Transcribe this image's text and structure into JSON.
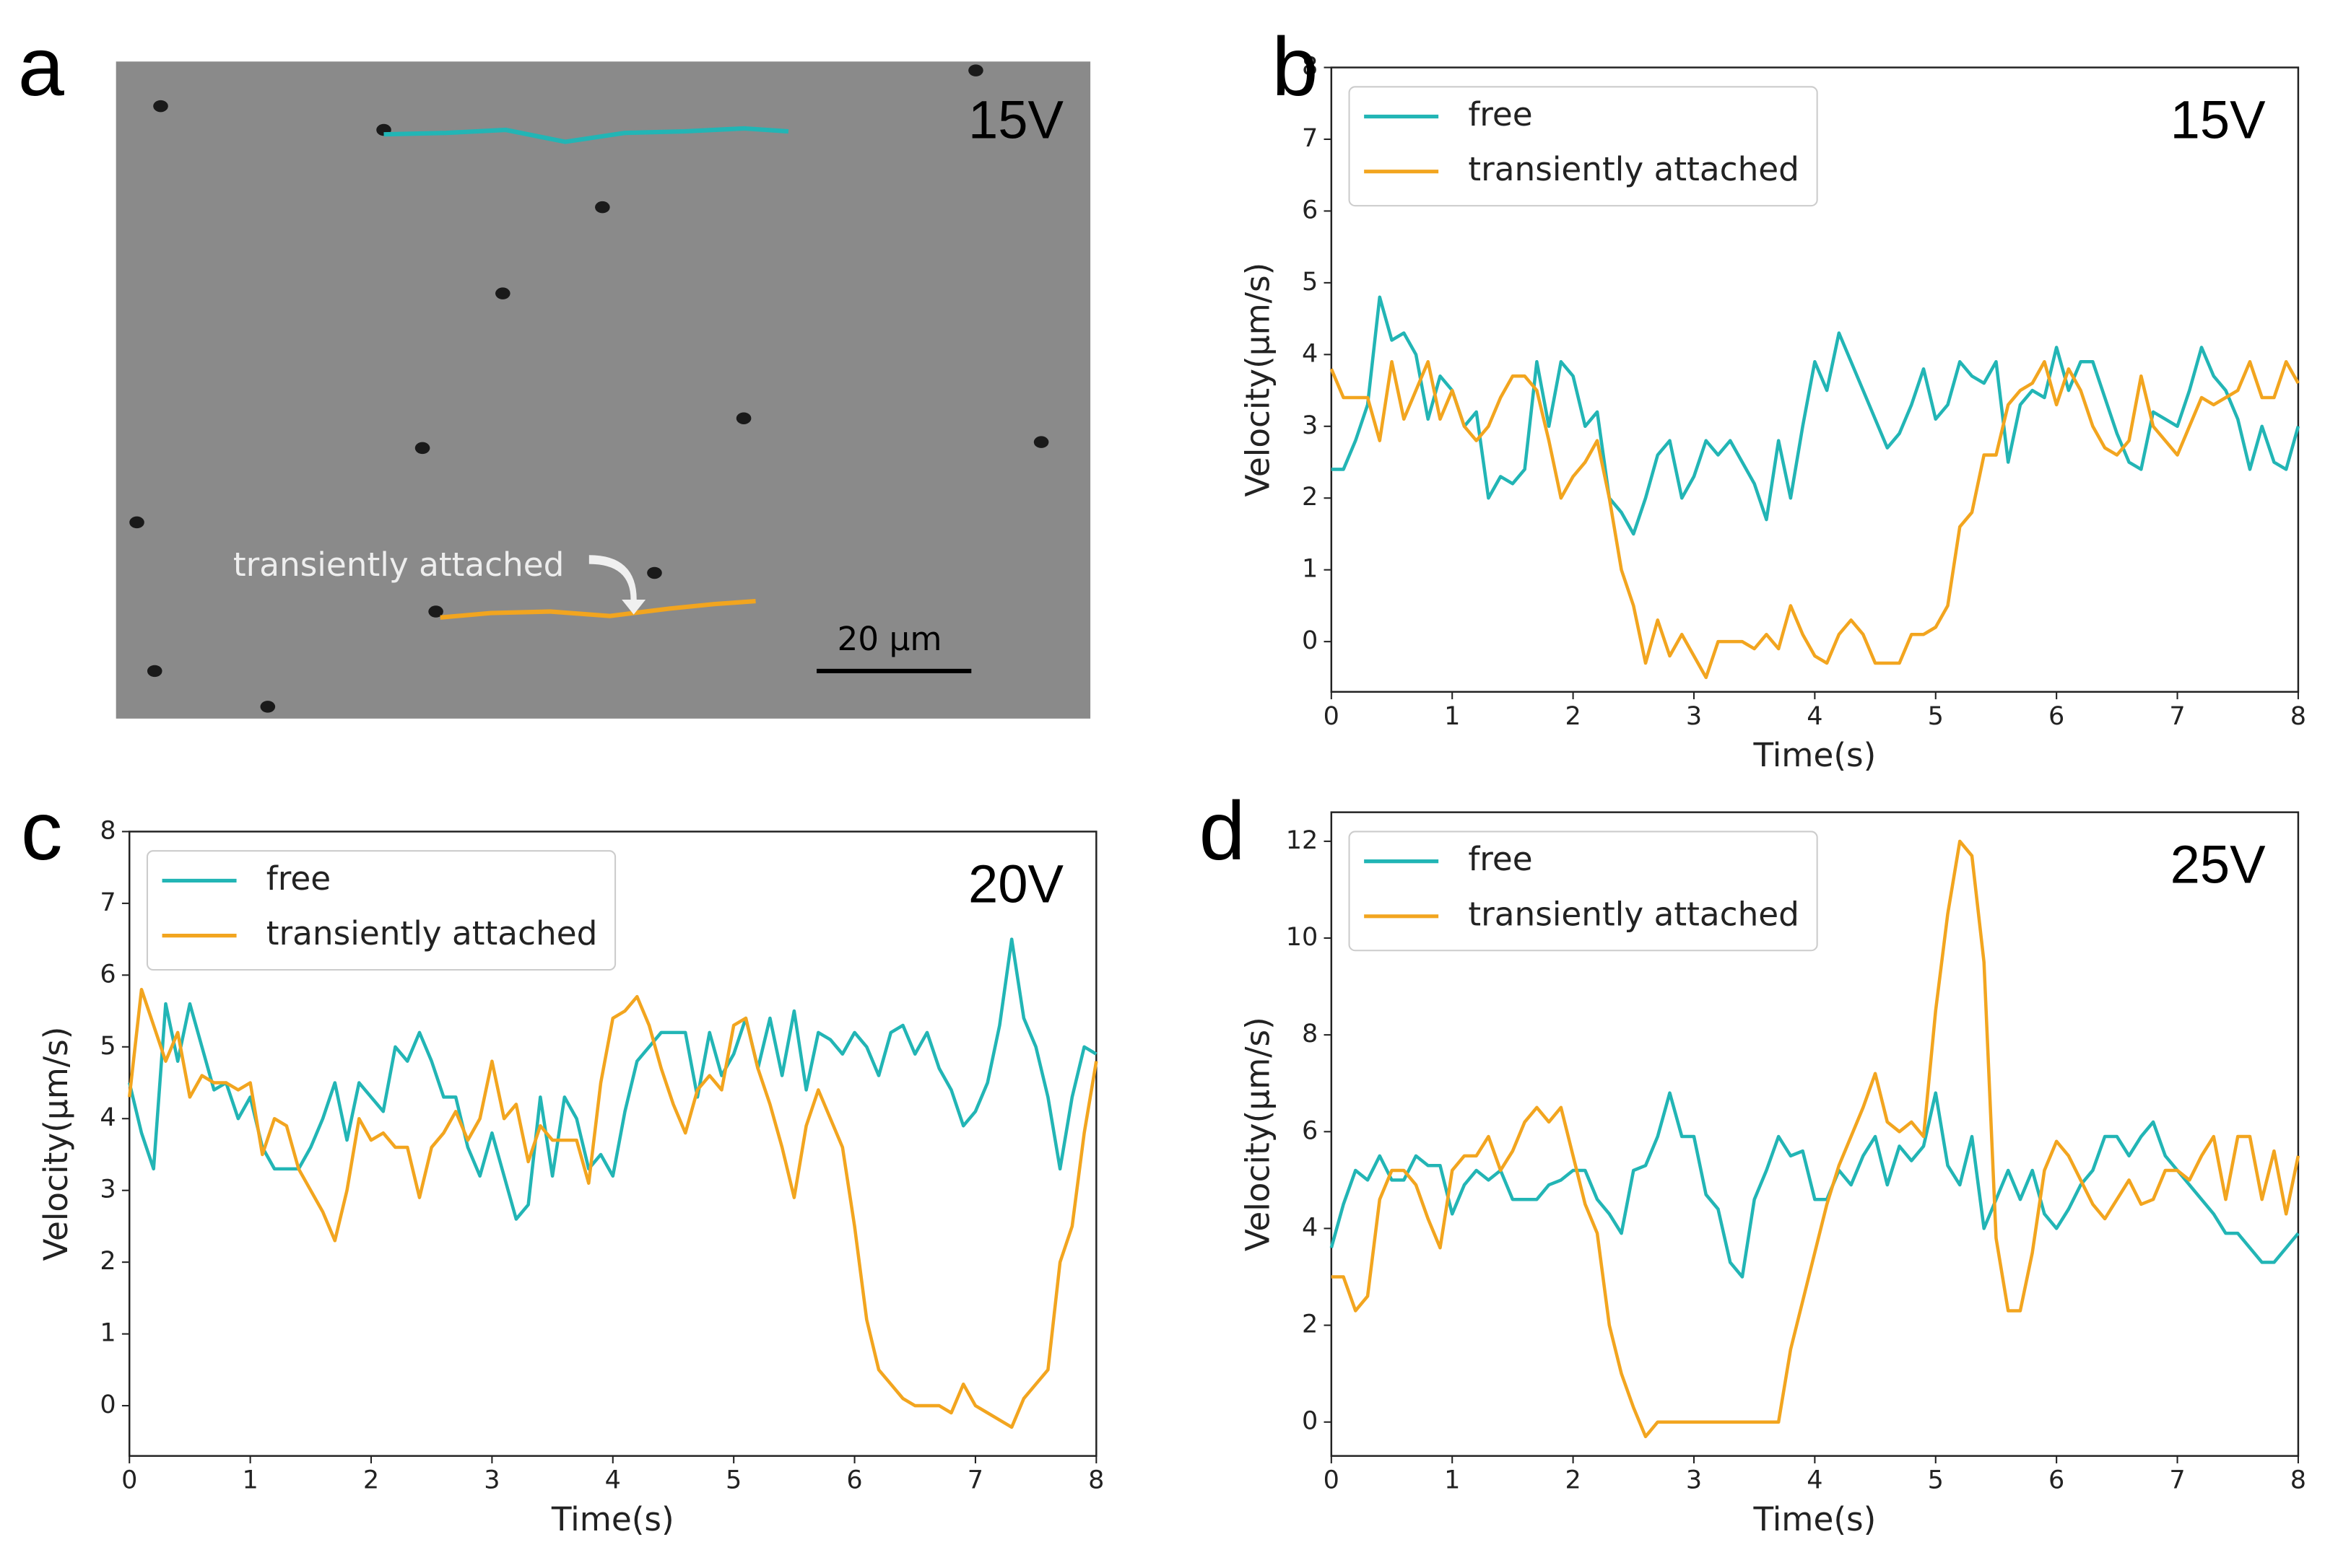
{
  "image_panel": {
    "panel_label": "a",
    "annotation": "15V",
    "note": "transiently attached",
    "scale_bar": "20 μm"
  },
  "chart_data": [
    {
      "type": "line",
      "panel_label": "b",
      "annotation": "15V",
      "xlabel": "Time(s)",
      "ylabel": "Velocity(μm/s)",
      "legend": "upper left",
      "xlim": [
        0,
        8
      ],
      "xticks": [
        0,
        1,
        2,
        3,
        4,
        5,
        6,
        7,
        8
      ],
      "ylim": [
        -0.7,
        8
      ],
      "yticks": [
        0,
        1,
        2,
        3,
        4,
        5,
        6,
        7,
        8
      ],
      "x": [
        0,
        0.1,
        0.2,
        0.3,
        0.4,
        0.5,
        0.6,
        0.7,
        0.8,
        0.9,
        1,
        1.1,
        1.2,
        1.3,
        1.4,
        1.5,
        1.6,
        1.7,
        1.8,
        1.9,
        2,
        2.1,
        2.2,
        2.3,
        2.4,
        2.5,
        2.6,
        2.7,
        2.8,
        2.9,
        3,
        3.1,
        3.2,
        3.3,
        3.4,
        3.5,
        3.6,
        3.7,
        3.8,
        3.9,
        4,
        4.1,
        4.2,
        4.3,
        4.4,
        4.5,
        4.6,
        4.7,
        4.8,
        4.9,
        5,
        5.1,
        5.2,
        5.3,
        5.4,
        5.5,
        5.6,
        5.7,
        5.8,
        5.9,
        6,
        6.1,
        6.2,
        6.3,
        6.4,
        6.5,
        6.6,
        6.7,
        6.8,
        6.9,
        7,
        7.1,
        7.2,
        7.3,
        7.4,
        7.5,
        7.6,
        7.7,
        7.8,
        7.9,
        8
      ],
      "series": [
        {
          "name": "free",
          "color": "#22b5b5",
          "values": [
            2.4,
            2.4,
            2.8,
            3.3,
            4.8,
            4.2,
            4.3,
            4.0,
            3.1,
            3.7,
            3.5,
            3.0,
            3.2,
            2.0,
            2.3,
            2.2,
            2.4,
            3.9,
            3.0,
            3.9,
            3.7,
            3.0,
            3.2,
            2.0,
            1.8,
            1.5,
            2.0,
            2.6,
            2.8,
            2.0,
            2.3,
            2.8,
            2.6,
            2.8,
            2.5,
            2.2,
            1.7,
            2.8,
            2.0,
            3.0,
            3.9,
            3.5,
            4.3,
            3.9,
            3.5,
            3.1,
            2.7,
            2.9,
            3.3,
            3.8,
            3.1,
            3.3,
            3.9,
            3.7,
            3.6,
            3.9,
            2.5,
            3.3,
            3.5,
            3.4,
            4.1,
            3.5,
            3.9,
            3.9,
            3.4,
            2.9,
            2.5,
            2.4,
            3.2,
            3.1,
            3.0,
            3.5,
            4.1,
            3.7,
            3.5,
            3.1,
            2.4,
            3.0,
            2.5,
            2.4,
            3.0
          ]
        },
        {
          "name": "transiently attached",
          "color": "#f2a51f",
          "values": [
            3.8,
            3.4,
            3.4,
            3.4,
            2.8,
            3.9,
            3.1,
            3.5,
            3.9,
            3.1,
            3.5,
            3.0,
            2.8,
            3.0,
            3.4,
            3.7,
            3.7,
            3.5,
            2.8,
            2.0,
            2.3,
            2.5,
            2.8,
            2.0,
            1.0,
            0.5,
            -0.3,
            0.3,
            -0.2,
            0.1,
            -0.2,
            -0.5,
            0.0,
            0.0,
            0.0,
            -0.1,
            0.1,
            -0.1,
            0.5,
            0.1,
            -0.2,
            -0.3,
            0.1,
            0.3,
            0.1,
            -0.3,
            -0.3,
            -0.3,
            0.1,
            0.1,
            0.2,
            0.5,
            1.6,
            1.8,
            2.6,
            2.6,
            3.3,
            3.5,
            3.6,
            3.9,
            3.3,
            3.8,
            3.5,
            3.0,
            2.7,
            2.6,
            2.8,
            3.7,
            3.0,
            2.8,
            2.6,
            3.0,
            3.4,
            3.3,
            3.4,
            3.5,
            3.9,
            3.4,
            3.4,
            3.9,
            3.6
          ]
        }
      ]
    },
    {
      "type": "line",
      "panel_label": "c",
      "annotation": "20V",
      "xlabel": "Time(s)",
      "ylabel": "Velocity(μm/s)",
      "legend": "upper left",
      "xlim": [
        0,
        8
      ],
      "xticks": [
        0,
        1,
        2,
        3,
        4,
        5,
        6,
        7,
        8
      ],
      "ylim": [
        -0.7,
        8
      ],
      "yticks": [
        0,
        1,
        2,
        3,
        4,
        5,
        6,
        7,
        8
      ],
      "x": [
        0,
        0.1,
        0.2,
        0.3,
        0.4,
        0.5,
        0.6,
        0.7,
        0.8,
        0.9,
        1,
        1.1,
        1.2,
        1.3,
        1.4,
        1.5,
        1.6,
        1.7,
        1.8,
        1.9,
        2,
        2.1,
        2.2,
        2.3,
        2.4,
        2.5,
        2.6,
        2.7,
        2.8,
        2.9,
        3,
        3.1,
        3.2,
        3.3,
        3.4,
        3.5,
        3.6,
        3.7,
        3.8,
        3.9,
        4,
        4.1,
        4.2,
        4.3,
        4.4,
        4.5,
        4.6,
        4.7,
        4.8,
        4.9,
        5,
        5.1,
        5.2,
        5.3,
        5.4,
        5.5,
        5.6,
        5.7,
        5.8,
        5.9,
        6,
        6.1,
        6.2,
        6.3,
        6.4,
        6.5,
        6.6,
        6.7,
        6.8,
        6.9,
        7,
        7.1,
        7.2,
        7.3,
        7.4,
        7.5,
        7.6,
        7.7,
        7.8,
        7.9,
        8
      ],
      "series": [
        {
          "name": "free",
          "color": "#22b5b5",
          "values": [
            4.5,
            3.8,
            3.3,
            5.6,
            4.8,
            5.6,
            5.0,
            4.4,
            4.5,
            4.0,
            4.3,
            3.6,
            3.3,
            3.3,
            3.3,
            3.6,
            4.0,
            4.5,
            3.7,
            4.5,
            4.3,
            4.1,
            5.0,
            4.8,
            5.2,
            4.8,
            4.3,
            4.3,
            3.6,
            3.2,
            3.8,
            3.2,
            2.6,
            2.8,
            4.3,
            3.2,
            4.3,
            4.0,
            3.3,
            3.5,
            3.2,
            4.1,
            4.8,
            5.0,
            5.2,
            5.2,
            5.2,
            4.3,
            5.2,
            4.6,
            4.9,
            5.4,
            4.7,
            5.4,
            4.6,
            5.5,
            4.4,
            5.2,
            5.1,
            4.9,
            5.2,
            5.0,
            4.6,
            5.2,
            5.3,
            4.9,
            5.2,
            4.7,
            4.4,
            3.9,
            4.1,
            4.5,
            5.3,
            6.5,
            5.4,
            5.0,
            4.3,
            3.3,
            4.3,
            5.0,
            4.9
          ]
        },
        {
          "name": "transiently attached",
          "color": "#f2a51f",
          "values": [
            4.3,
            5.8,
            5.3,
            4.8,
            5.2,
            4.3,
            4.6,
            4.5,
            4.5,
            4.4,
            4.5,
            3.5,
            4.0,
            3.9,
            3.3,
            3.0,
            2.7,
            2.3,
            3.0,
            4.0,
            3.7,
            3.8,
            3.6,
            3.6,
            2.9,
            3.6,
            3.8,
            4.1,
            3.7,
            4.0,
            4.8,
            4.0,
            4.2,
            3.4,
            3.9,
            3.7,
            3.7,
            3.7,
            3.1,
            4.5,
            5.4,
            5.5,
            5.7,
            5.3,
            4.7,
            4.2,
            3.8,
            4.4,
            4.6,
            4.4,
            5.3,
            5.4,
            4.7,
            4.2,
            3.6,
            2.9,
            3.9,
            4.4,
            4.0,
            3.6,
            2.5,
            1.2,
            0.5,
            0.3,
            0.1,
            0.0,
            0.0,
            0.0,
            -0.1,
            0.3,
            0.0,
            -0.1,
            -0.2,
            -0.3,
            0.1,
            0.3,
            0.5,
            2.0,
            2.5,
            3.8,
            4.8
          ]
        }
      ]
    },
    {
      "type": "line",
      "panel_label": "d",
      "annotation": "25V",
      "xlabel": "Time(s)",
      "ylabel": "Velocity(μm/s)",
      "legend": "upper left",
      "xlim": [
        0,
        8
      ],
      "xticks": [
        0,
        1,
        2,
        3,
        4,
        5,
        6,
        7,
        8
      ],
      "ylim": [
        -0.7,
        12.6
      ],
      "yticks": [
        0,
        2,
        4,
        6,
        8,
        10,
        12
      ],
      "x": [
        0,
        0.1,
        0.2,
        0.3,
        0.4,
        0.5,
        0.6,
        0.7,
        0.8,
        0.9,
        1,
        1.1,
        1.2,
        1.3,
        1.4,
        1.5,
        1.6,
        1.7,
        1.8,
        1.9,
        2,
        2.1,
        2.2,
        2.3,
        2.4,
        2.5,
        2.6,
        2.7,
        2.8,
        2.9,
        3,
        3.1,
        3.2,
        3.3,
        3.4,
        3.5,
        3.6,
        3.7,
        3.8,
        3.9,
        4,
        4.1,
        4.2,
        4.3,
        4.4,
        4.5,
        4.6,
        4.7,
        4.8,
        4.9,
        5,
        5.1,
        5.2,
        5.3,
        5.4,
        5.5,
        5.6,
        5.7,
        5.8,
        5.9,
        6,
        6.1,
        6.2,
        6.3,
        6.4,
        6.5,
        6.6,
        6.7,
        6.8,
        6.9,
        7,
        7.1,
        7.2,
        7.3,
        7.4,
        7.5,
        7.6,
        7.7,
        7.8,
        7.9,
        8
      ],
      "series": [
        {
          "name": "free",
          "color": "#22b5b5",
          "values": [
            3.6,
            4.5,
            5.2,
            5.0,
            5.5,
            5.0,
            5.0,
            5.5,
            5.3,
            5.3,
            4.3,
            4.9,
            5.2,
            5.0,
            5.2,
            4.6,
            4.6,
            4.6,
            4.9,
            5.0,
            5.2,
            5.2,
            4.6,
            4.3,
            3.9,
            5.2,
            5.3,
            5.9,
            6.8,
            5.9,
            5.9,
            4.7,
            4.4,
            3.3,
            3.0,
            4.6,
            5.2,
            5.9,
            5.5,
            5.6,
            4.6,
            4.6,
            5.2,
            4.9,
            5.5,
            5.9,
            4.9,
            5.7,
            5.4,
            5.7,
            6.8,
            5.3,
            4.9,
            5.9,
            4.0,
            4.6,
            5.2,
            4.6,
            5.2,
            4.3,
            4.0,
            4.4,
            4.9,
            5.2,
            5.9,
            5.9,
            5.5,
            5.9,
            6.2,
            5.5,
            5.2,
            4.9,
            4.6,
            4.3,
            3.9,
            3.9,
            3.6,
            3.3,
            3.3,
            3.6,
            3.9
          ]
        },
        {
          "name": "transiently attached",
          "color": "#f2a51f",
          "values": [
            3.0,
            3.0,
            2.3,
            2.6,
            4.6,
            5.2,
            5.2,
            4.9,
            4.2,
            3.6,
            5.2,
            5.5,
            5.5,
            5.9,
            5.2,
            5.6,
            6.2,
            6.5,
            6.2,
            6.5,
            5.5,
            4.5,
            3.9,
            2.0,
            1.0,
            0.3,
            -0.3,
            0.0,
            0.0,
            0.0,
            0.0,
            0.0,
            0.0,
            0.0,
            0.0,
            0.0,
            0.0,
            0.0,
            1.5,
            2.5,
            3.5,
            4.5,
            5.3,
            5.9,
            6.5,
            7.2,
            6.2,
            6.0,
            6.2,
            5.9,
            8.5,
            10.5,
            12.0,
            11.7,
            9.5,
            3.8,
            2.3,
            2.3,
            3.5,
            5.2,
            5.8,
            5.5,
            5.0,
            4.5,
            4.2,
            4.6,
            5.0,
            4.5,
            4.6,
            5.2,
            5.2,
            5.0,
            5.5,
            5.9,
            4.6,
            5.9,
            5.9,
            4.6,
            5.6,
            4.3,
            5.5
          ]
        }
      ]
    }
  ]
}
